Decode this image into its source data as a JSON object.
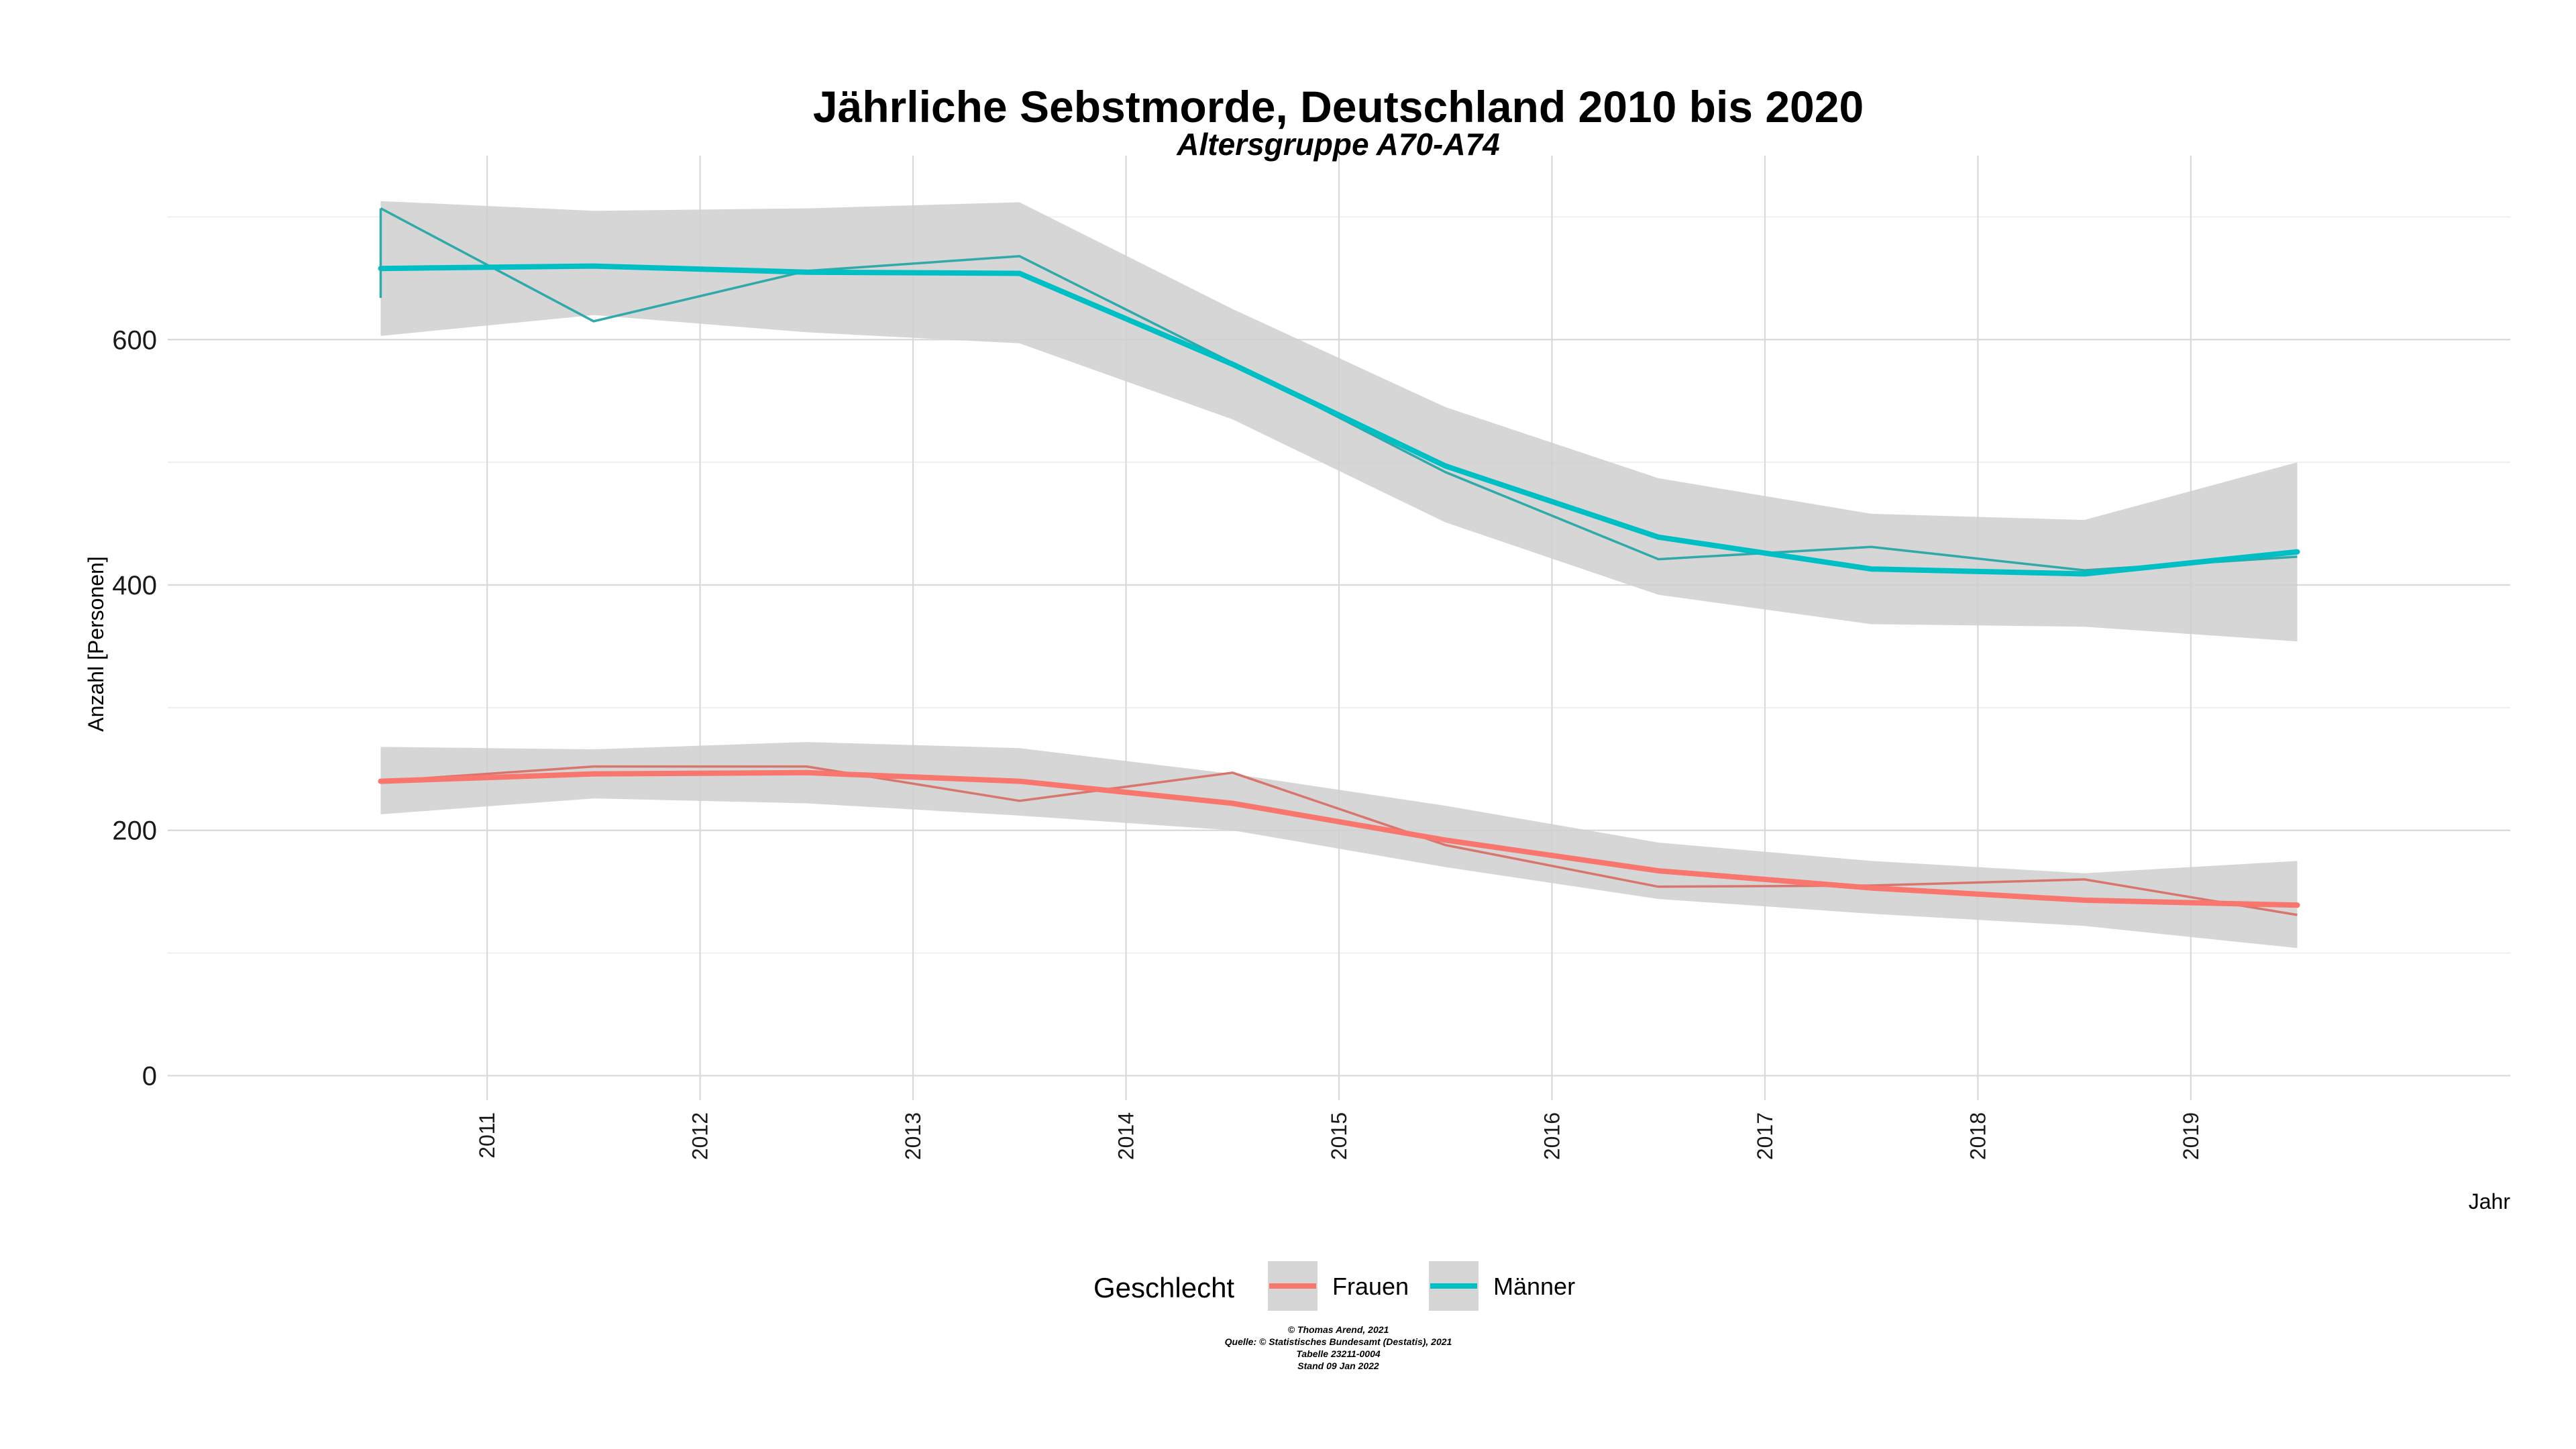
{
  "chart_data": {
    "type": "line",
    "title": "Jährliche Sebstmorde, Deutschland 2010 bis 2020",
    "subtitle": "Altersgruppe A70-A74",
    "xlabel": "Jahr",
    "ylabel": "Anzahl [Personen]",
    "xlim": [
      2009.5,
      2020.5
    ],
    "ylim": [
      -20,
      750
    ],
    "x_ticks": [
      2011,
      2012,
      2013,
      2014,
      2015,
      2016,
      2017,
      2018,
      2019
    ],
    "y_ticks": [
      0,
      200,
      400,
      600
    ],
    "grid": true,
    "legend": {
      "title": "Geschlecht",
      "position": "bottom"
    },
    "x": [
      2010.5,
      2011.5,
      2012.5,
      2013.5,
      2014.5,
      2015.5,
      2016.5,
      2017.5,
      2018.5,
      2019.5
    ],
    "series": [
      {
        "name": "Frauen",
        "color": "#F8766D",
        "values": [
          240,
          252,
          252,
          224,
          247,
          188,
          154,
          155,
          160,
          131
        ],
        "smooth": [
          240,
          246,
          247,
          240,
          222,
          192,
          167,
          153,
          143,
          139
        ],
        "band_upper": [
          268,
          266,
          272,
          267,
          246,
          220,
          190,
          175,
          165,
          175
        ],
        "band_lower": [
          213,
          226,
          222,
          212,
          200,
          170,
          144,
          132,
          122,
          104
        ]
      },
      {
        "name": "Männer",
        "color": "#00BFC4",
        "values": [
          707,
          615,
          656,
          668,
          581,
          492,
          421,
          431,
          412,
          423
        ],
        "smooth": [
          658,
          660,
          655,
          654,
          580,
          497,
          439,
          413,
          409,
          427
        ],
        "band_upper": [
          713,
          705,
          707,
          712,
          625,
          545,
          487,
          458,
          453,
          500
        ],
        "band_lower": [
          603,
          620,
          606,
          597,
          535,
          451,
          392,
          368,
          366,
          354
        ]
      }
    ]
  },
  "caption": {
    "line1": "© Thomas Arend, 2021",
    "line2": "Quelle: © Statistisches Bundesamt (Destatis), 2021",
    "line3": "Tabelle 23211-0004",
    "line4": "Stand 09 Jan 2022"
  }
}
